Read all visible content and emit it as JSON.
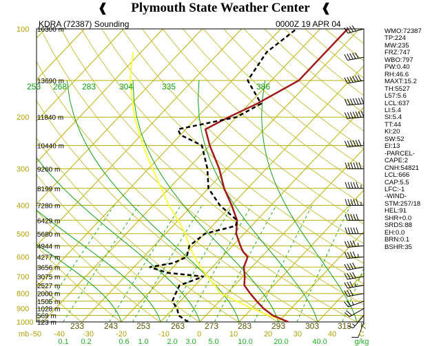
{
  "header": {
    "title": "Plymouth State Weather Center",
    "station_label": "KDRA (72387) Sounding",
    "time_label": "0000Z 19 APR 04"
  },
  "colors": {
    "isotherm": "#b8b000",
    "dry_adiabat": "#c8c040",
    "moist_adiabat": "#11a011",
    "mixing_ratio": "#20b020",
    "temperature": "#a01818",
    "dewpoint": "#000000",
    "parcel": "#ffff40",
    "axis_text": "#b0a000"
  },
  "chart_data": {
    "type": "skew-t",
    "pressure_levels": [
      {
        "p": "100",
        "h": "16300 m"
      },
      {
        "p": "150",
        "h": "13690 m"
      },
      {
        "p": "200",
        "h": "11840 m"
      },
      {
        "p": "250",
        "h": "10440 m"
      },
      {
        "p": "300",
        "h": "9260 m"
      },
      {
        "p": "350",
        "h": "8199 m"
      },
      {
        "p": "400",
        "h": "7280 m"
      },
      {
        "p": "450",
        "h": "6429 m"
      },
      {
        "p": "500",
        "h": "5680 m"
      },
      {
        "p": "550",
        "h": "4944 m"
      },
      {
        "p": "600",
        "h": "4277 m"
      },
      {
        "p": "650",
        "h": "3656 m"
      },
      {
        "p": "700",
        "h": "3075 m"
      },
      {
        "p": "750",
        "h": "2527 m"
      },
      {
        "p": "800",
        "h": "2000 m"
      },
      {
        "p": "850",
        "h": "1505 m"
      },
      {
        "p": "900",
        "h": "1028 m"
      },
      {
        "p": "950",
        "h": "569 m"
      },
      {
        "p": "1000",
        "h": "123 m"
      }
    ],
    "pressure_axis_labels": [
      "100",
      "200",
      "300",
      "400",
      "500",
      "600",
      "700",
      "800",
      "900",
      "1000"
    ],
    "temperature_ticks": [
      "-50",
      "-40",
      "-30",
      "-20",
      "-10",
      "0",
      "10",
      "20",
      "30",
      "40",
      "C"
    ],
    "temperature_values": [
      -50,
      -40,
      -30,
      -20,
      -10,
      0,
      10,
      20,
      30,
      40
    ],
    "x_units_prefix": "mb",
    "mixing_ratio_ticks": [
      "0.1",
      "0.2",
      "0.6",
      "1.0",
      "2.0",
      "3.0",
      "5.0",
      "10.0",
      "20.0",
      "40.0",
      "g/kg"
    ],
    "theta_e_top": [
      "253",
      "268",
      "283",
      "304",
      "335",
      "386"
    ],
    "theta_bottom": [
      "233",
      "243",
      "253",
      "263",
      "273",
      "283",
      "293",
      "303",
      "313",
      "K"
    ],
    "temperature_profile": [
      [
        1000,
        22.5
      ],
      [
        950,
        17
      ],
      [
        900,
        13
      ],
      [
        850,
        9.5
      ],
      [
        800,
        6
      ],
      [
        750,
        2.5
      ],
      [
        700,
        0.5
      ],
      [
        650,
        -2
      ],
      [
        600,
        -3.5
      ],
      [
        575,
        -6
      ],
      [
        550,
        -8
      ],
      [
        500,
        -12
      ],
      [
        450,
        -15
      ],
      [
        400,
        -20
      ],
      [
        350,
        -26
      ],
      [
        300,
        -32
      ],
      [
        250,
        -40
      ],
      [
        220,
        -45
      ],
      [
        200,
        -42
      ],
      [
        180,
        -38
      ],
      [
        150,
        -33
      ],
      [
        100,
        -33
      ]
    ],
    "dewpoint_profile": [
      [
        1000,
        -3
      ],
      [
        950,
        -7
      ],
      [
        900,
        -9
      ],
      [
        850,
        -12
      ],
      [
        800,
        -13
      ],
      [
        750,
        -14
      ],
      [
        700,
        -10
      ],
      [
        680,
        -20
      ],
      [
        650,
        -26
      ],
      [
        630,
        -21
      ],
      [
        600,
        -19
      ],
      [
        550,
        -21
      ],
      [
        500,
        -20
      ],
      [
        470,
        -14
      ],
      [
        450,
        -15
      ],
      [
        400,
        -23
      ],
      [
        350,
        -30
      ],
      [
        300,
        -35
      ],
      [
        250,
        -42
      ],
      [
        230,
        -50
      ],
      [
        220,
        -52
      ],
      [
        200,
        -40
      ],
      [
        180,
        -37
      ],
      [
        150,
        -46
      ],
      [
        120,
        -48
      ],
      [
        100,
        -46
      ]
    ],
    "parcel_profile": [
      [
        1000,
        22.5
      ],
      [
        950,
        16
      ],
      [
        900,
        10
      ],
      [
        850,
        4.5
      ],
      [
        800,
        -1.5
      ],
      [
        750,
        -5
      ],
      [
        700,
        -9
      ],
      [
        650,
        -13
      ],
      [
        600,
        -17
      ],
      [
        550,
        -21
      ],
      [
        500,
        -25
      ],
      [
        450,
        -30
      ],
      [
        400,
        -36
      ],
      [
        350,
        -42
      ],
      [
        300,
        -49
      ],
      [
        250,
        -57
      ],
      [
        200,
        -66
      ],
      [
        150,
        -76
      ],
      [
        120,
        -82
      ]
    ],
    "wind_barbs": [
      {
        "p": 1000,
        "dir": 200,
        "spd": 10
      },
      {
        "p": 950,
        "dir": 220,
        "spd": 15
      },
      {
        "p": 900,
        "dir": 240,
        "spd": 20
      },
      {
        "p": 850,
        "dir": 250,
        "spd": 25
      },
      {
        "p": 800,
        "dir": 260,
        "spd": 30
      },
      {
        "p": 750,
        "dir": 260,
        "spd": 35
      },
      {
        "p": 700,
        "dir": 260,
        "spd": 40
      },
      {
        "p": 650,
        "dir": 260,
        "spd": 40
      },
      {
        "p": 600,
        "dir": 265,
        "spd": 45
      },
      {
        "p": 550,
        "dir": 265,
        "spd": 45
      },
      {
        "p": 500,
        "dir": 270,
        "spd": 50
      },
      {
        "p": 450,
        "dir": 270,
        "spd": 50
      },
      {
        "p": 400,
        "dir": 270,
        "spd": 55
      },
      {
        "p": 350,
        "dir": 270,
        "spd": 55
      },
      {
        "p": 300,
        "dir": 270,
        "spd": 60
      },
      {
        "p": 250,
        "dir": 265,
        "spd": 65
      },
      {
        "p": 200,
        "dir": 265,
        "spd": 70
      },
      {
        "p": 180,
        "dir": 265,
        "spd": 70
      },
      {
        "p": 150,
        "dir": 260,
        "spd": 60
      },
      {
        "p": 125,
        "dir": 260,
        "spd": 50
      },
      {
        "p": 100,
        "dir": 255,
        "spd": 40
      }
    ]
  },
  "indices": [
    "WMO:72387",
    "TP:224",
    "MW:235",
    "FRZ:747",
    "WBO:797",
    "PW:0.40",
    "RH:46.6",
    "MAXT:15.2",
    "TH:5527",
    "L57:5.6",
    "LCL:637",
    "LI:5.4",
    "SI:5.4",
    "TT:44",
    "KI:20",
    "SW:52",
    "EI:13",
    "-PARCEL-",
    "CAPE:2",
    "CNH:54821",
    "LCL:666",
    "CAP:5.5",
    "LFC:-1",
    "-WIND-",
    "STM:257/18",
    "HEL:91",
    "SHR+0.0",
    "SRDS:88",
    "EH:0.0",
    "BRN:0.1",
    "BSHR:35"
  ]
}
